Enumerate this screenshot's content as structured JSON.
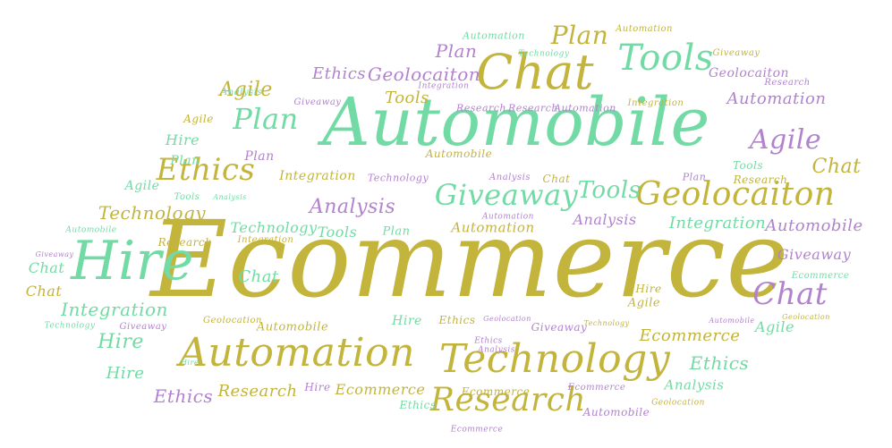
{
  "colors": {
    "green": "#72dba5",
    "yellow": "#c3b43c",
    "purple": "#b282cf"
  },
  "words": {
    "w01": "Ecommerce",
    "w02": "Automobile",
    "w03": "Chat",
    "w04": "Tools",
    "w05": "Plan",
    "w06": "Automation",
    "w07": "Automation",
    "w08": "Plan",
    "w09": "Technology",
    "w10": "Giveaway",
    "w11": "Ethics",
    "w12": "Geolocaiton",
    "w13": "Geolocaiton",
    "w14": "Automation",
    "w15": "Tools",
    "w16": "Integration",
    "w17": "Research",
    "w18": "Agile",
    "w19": "Analysis",
    "w20": "Ethics",
    "w21": "Agile",
    "w22": "Giveaway",
    "w23": "Research",
    "w24": "Research",
    "w25": "Automation",
    "w26": "Integration",
    "w27": "Plan",
    "w28": "Agile",
    "w29": "Agile",
    "w30": "Hire",
    "w31": "Plan",
    "w32": "Chat",
    "w33": "Ethics",
    "w34": "Integration",
    "w35": "Technology",
    "w36": "Analysis",
    "w37": "Chat",
    "w38": "Tools",
    "w39": "Plan",
    "w40": "Tools",
    "w41": "Giveaway",
    "w42": "Tools",
    "w43": "Geolocaiton",
    "w44": "Research",
    "w45": "Chat",
    "w46": "Agile",
    "w47": "Analysis",
    "w48": "Technology",
    "w49": "Analysis",
    "w50": "Automation",
    "w51": "Technology",
    "w52": "Analysis",
    "w53": "Integration",
    "w54": "Automobile",
    "w55": "Automobile",
    "w56": "Hire",
    "w57": "Research",
    "w58": "Integration",
    "w59": "Tools",
    "w60": "Plan",
    "w61": "Automation",
    "w62": "Giveaway",
    "w63": "Giveaway",
    "w64": "Ecommerce",
    "w65": "Chat",
    "w66": "Chat",
    "w67": "Chat",
    "w68": "Agile",
    "w69": "Technology",
    "w70": "Integration",
    "w71": "Hire",
    "w72": "Geolocation",
    "w73": "Automobile",
    "w74": "Hire",
    "w75": "Ethics",
    "w76": "Geolocation",
    "w77": "Hire",
    "w78": "Agile",
    "w79": "Giveaway",
    "w80": "Technology",
    "w81": "Automobile",
    "w82": "Geolocation",
    "w83": "Technology",
    "w84": "Giveaway",
    "w85": "Automation",
    "w86": "Technology",
    "w87": "Ecommerce",
    "w88": "Agile",
    "w89": "Hire",
    "w90": "Ethics",
    "w91": "Ethics",
    "w92": "Ethics",
    "w93": "Hire",
    "w94": "Research",
    "w95": "Hire",
    "w96": "Ecommerce",
    "w97": "Analysis",
    "w98": "Ecommerce",
    "w99": "Ecommerce",
    "w100": "Research",
    "w101": "Ethics",
    "w102": "Automobile",
    "w103": "Geolocation",
    "w104": "Ecommerce"
  }
}
